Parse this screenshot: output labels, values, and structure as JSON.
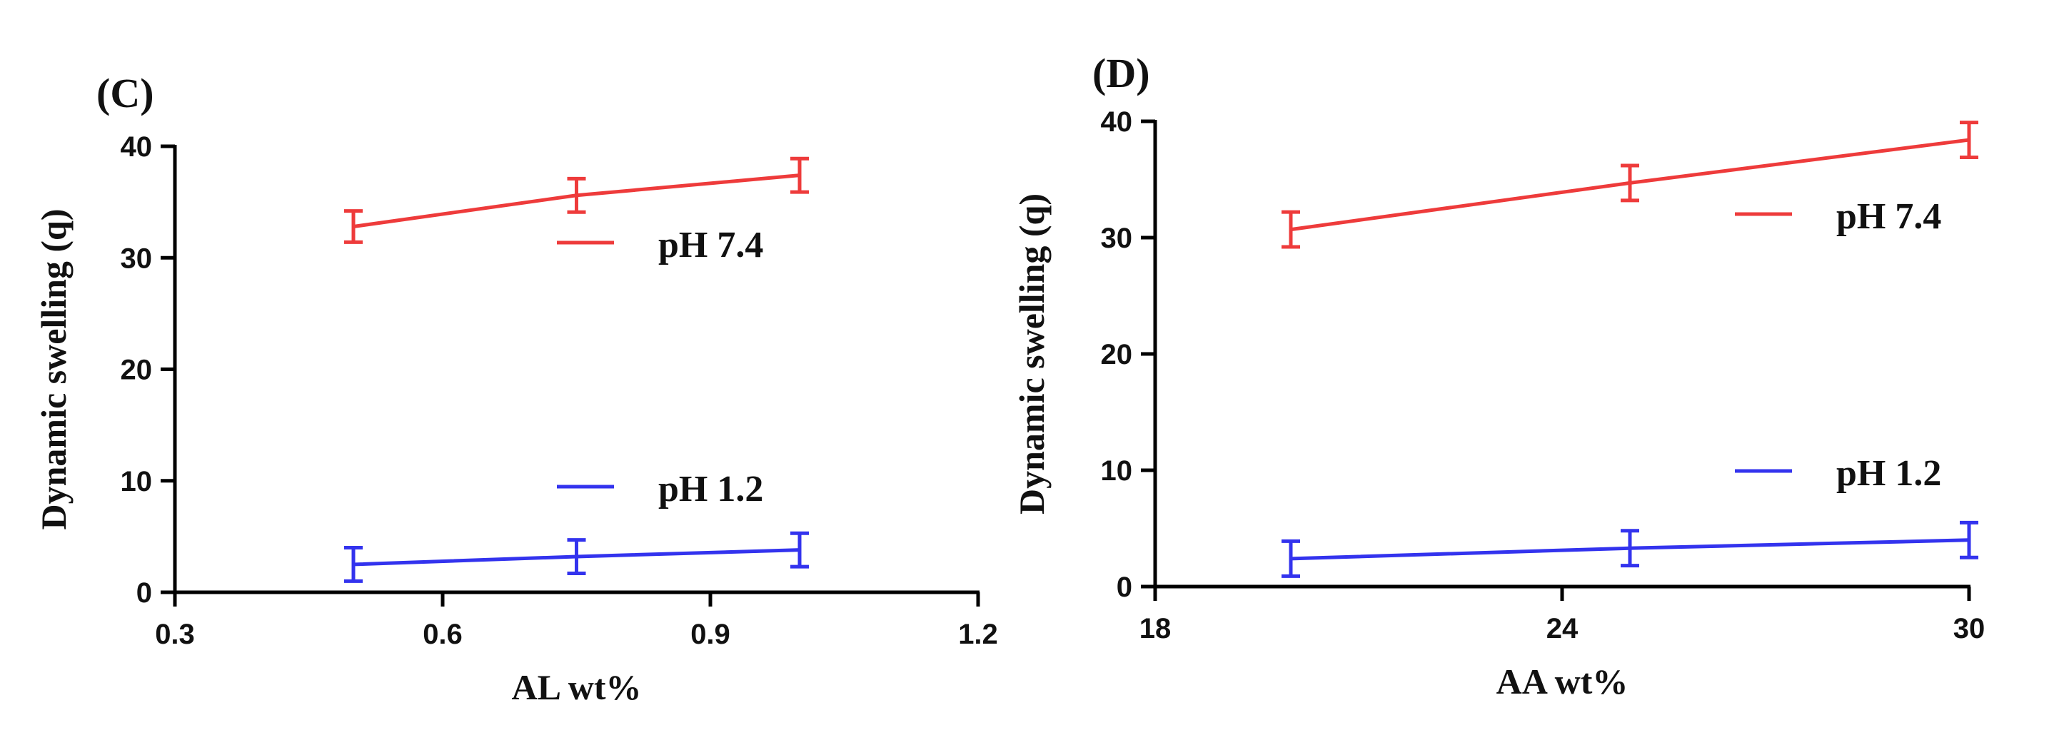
{
  "chart_data": [
    {
      "type": "line",
      "panel_label": "(C)",
      "xlabel": "AL wt%",
      "ylabel": "Dynamic swelling (q)",
      "xlim": [
        0.3,
        1.2
      ],
      "ylim": [
        0,
        40
      ],
      "x_ticks": [
        "0.3",
        "0.6",
        "0.9",
        "1.2"
      ],
      "y_ticks": [
        "0",
        "10",
        "20",
        "30",
        "40"
      ],
      "legend_placement": "right, beside each series",
      "series": [
        {
          "name": "pH 7.4",
          "color": "#ee3b3b",
          "x": [
            0.5,
            0.75,
            1.0
          ],
          "y": [
            32.8,
            35.6,
            37.4
          ],
          "err": [
            1.4,
            1.5,
            1.5
          ]
        },
        {
          "name": "pH 1.2",
          "color": "#3333ee",
          "x": [
            0.5,
            0.75,
            1.0
          ],
          "y": [
            2.5,
            3.2,
            3.8
          ],
          "err": [
            1.5,
            1.5,
            1.5
          ]
        }
      ]
    },
    {
      "type": "line",
      "panel_label": "(D)",
      "xlabel": "AA wt%",
      "ylabel": "Dynamic swelling (q)",
      "xlim": [
        18,
        30
      ],
      "ylim": [
        0,
        40
      ],
      "x_ticks": [
        "18",
        "24",
        "30"
      ],
      "y_ticks": [
        "0",
        "10",
        "20",
        "30",
        "40"
      ],
      "legend_placement": "right, beside each series",
      "series": [
        {
          "name": "pH 7.4",
          "color": "#ee3b3b",
          "x": [
            20,
            25,
            30
          ],
          "y": [
            30.7,
            34.7,
            38.4
          ],
          "err": [
            1.5,
            1.5,
            1.5
          ]
        },
        {
          "name": "pH 1.2",
          "color": "#3333ee",
          "x": [
            20,
            25,
            30
          ],
          "y": [
            2.4,
            3.3,
            4.0
          ],
          "err": [
            1.5,
            1.5,
            1.5
          ]
        }
      ]
    }
  ]
}
